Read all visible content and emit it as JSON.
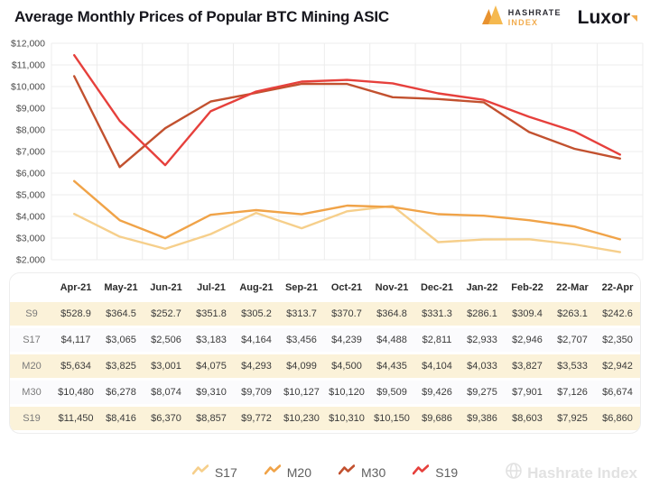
{
  "header": {
    "title": "Average Monthly Prices of Popular BTC Mining ASIC",
    "hashrate_logo_line1": "HASHRATE",
    "hashrate_logo_line2": "INDEX",
    "luxor_logo": "Luxor"
  },
  "colors": {
    "s17": "#F6CF8B",
    "m20": "#F0A348",
    "m30": "#C2512F",
    "s19": "#E6403C",
    "grid": "#ECECEC",
    "axis_text": "#4A4A4A",
    "accent_orange": "#F2AC4E"
  },
  "chart_data": {
    "type": "line",
    "title": "Average Monthly Prices of Popular BTC Mining ASIC",
    "x": [
      "Apr-21",
      "May-21",
      "Jun-21",
      "Jul-21",
      "Aug-21",
      "Sep-21",
      "Oct-21",
      "Nov-21",
      "Dec-21",
      "Jan-22",
      "Feb-22",
      "22-Mar",
      "22-Apr"
    ],
    "series": [
      {
        "name": "S17",
        "color": "#F6CF8B",
        "values": [
          4117,
          3065,
          2506,
          3183,
          4164,
          3456,
          4239,
          4488,
          2811,
          2933,
          2946,
          2707,
          2350
        ]
      },
      {
        "name": "M20",
        "color": "#F0A348",
        "values": [
          5634,
          3825,
          3001,
          4075,
          4293,
          4099,
          4500,
          4435,
          4104,
          4033,
          3827,
          3533,
          2942
        ]
      },
      {
        "name": "M30",
        "color": "#C2512F",
        "values": [
          10480,
          6278,
          8074,
          9310,
          9709,
          10127,
          10120,
          9509,
          9426,
          9275,
          7901,
          7126,
          6674
        ]
      },
      {
        "name": "S19",
        "color": "#E6403C",
        "values": [
          11450,
          8416,
          6370,
          8857,
          9772,
          10230,
          10310,
          10150,
          9686,
          9386,
          8603,
          7925,
          6860
        ]
      }
    ],
    "xlabel": "",
    "ylabel": "",
    "ylim": [
      2000,
      12000
    ],
    "ytick_step": 1000,
    "ytick_labels": [
      "$12,000",
      "$11,000",
      "$10,000",
      "$9,000",
      "$8,000",
      "$7,000",
      "$6,000",
      "$5,000",
      "$4,000",
      "$3,000",
      "$2,000"
    ],
    "grid": true,
    "legend_position": "bottom"
  },
  "table": {
    "columns": [
      "",
      "Apr-21",
      "May-21",
      "Jun-21",
      "Jul-21",
      "Aug-21",
      "Sep-21",
      "Oct-21",
      "Nov-21",
      "Dec-21",
      "Jan-22",
      "Feb-22",
      "22-Mar",
      "22-Apr"
    ],
    "rows": [
      {
        "label": "S9",
        "values": [
          "$528.9",
          "$364.5",
          "$252.7",
          "$351.8",
          "$305.2",
          "$313.7",
          "$370.7",
          "$364.8",
          "$331.3",
          "$286.1",
          "$309.4",
          "$263.1",
          "$242.6"
        ]
      },
      {
        "label": "S17",
        "values": [
          "$4,117",
          "$3,065",
          "$2,506",
          "$3,183",
          "$4,164",
          "$3,456",
          "$4,239",
          "$4,488",
          "$2,811",
          "$2,933",
          "$2,946",
          "$2,707",
          "$2,350"
        ]
      },
      {
        "label": "M20",
        "values": [
          "$5,634",
          "$3,825",
          "$3,001",
          "$4,075",
          "$4,293",
          "$4,099",
          "$4,500",
          "$4,435",
          "$4,104",
          "$4,033",
          "$3,827",
          "$3,533",
          "$2,942"
        ]
      },
      {
        "label": "M30",
        "values": [
          "$10,480",
          "$6,278",
          "$8,074",
          "$9,310",
          "$9,709",
          "$10,127",
          "$10,120",
          "$9,509",
          "$9,426",
          "$9,275",
          "$7,901",
          "$7,126",
          "$6,674"
        ]
      },
      {
        "label": "S19",
        "values": [
          "$11,450",
          "$8,416",
          "$6,370",
          "$8,857",
          "$9,772",
          "$10,230",
          "$10,310",
          "$10,150",
          "$9,686",
          "$9,386",
          "$8,603",
          "$7,925",
          "$6,860"
        ]
      }
    ]
  },
  "legend": {
    "items": [
      "S17",
      "M20",
      "M30",
      "S19"
    ]
  },
  "watermark": "Hashrate Index"
}
